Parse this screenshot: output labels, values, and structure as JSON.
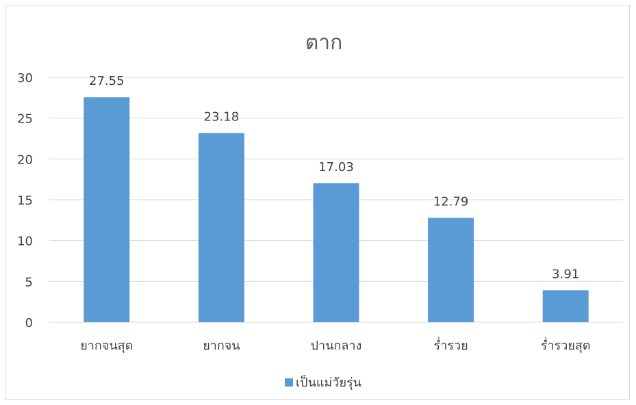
{
  "chart_data": {
    "type": "bar",
    "title": "ตาก",
    "categories": [
      "ยากจนสุด",
      "ยากจน",
      "ปานกลาง",
      "ร่ำรวย",
      "ร่ำรวยสุด"
    ],
    "series": [
      {
        "name": "เป็นแม่วัยรุ่น",
        "values": [
          27.55,
          23.18,
          17.03,
          12.79,
          3.91
        ],
        "color": "#5b9bd5"
      }
    ],
    "value_labels": [
      "27.55",
      "23.18",
      "17.03",
      "12.79",
      "3.91"
    ],
    "ylim": [
      0,
      30
    ],
    "yticks": [
      0,
      5,
      10,
      15,
      20,
      25,
      30
    ],
    "grid": true,
    "legend_position": "bottom",
    "colors": {
      "grid": "#d9d9d9",
      "text": "#404040",
      "title": "#595959",
      "border": "#d9d9d9"
    }
  }
}
